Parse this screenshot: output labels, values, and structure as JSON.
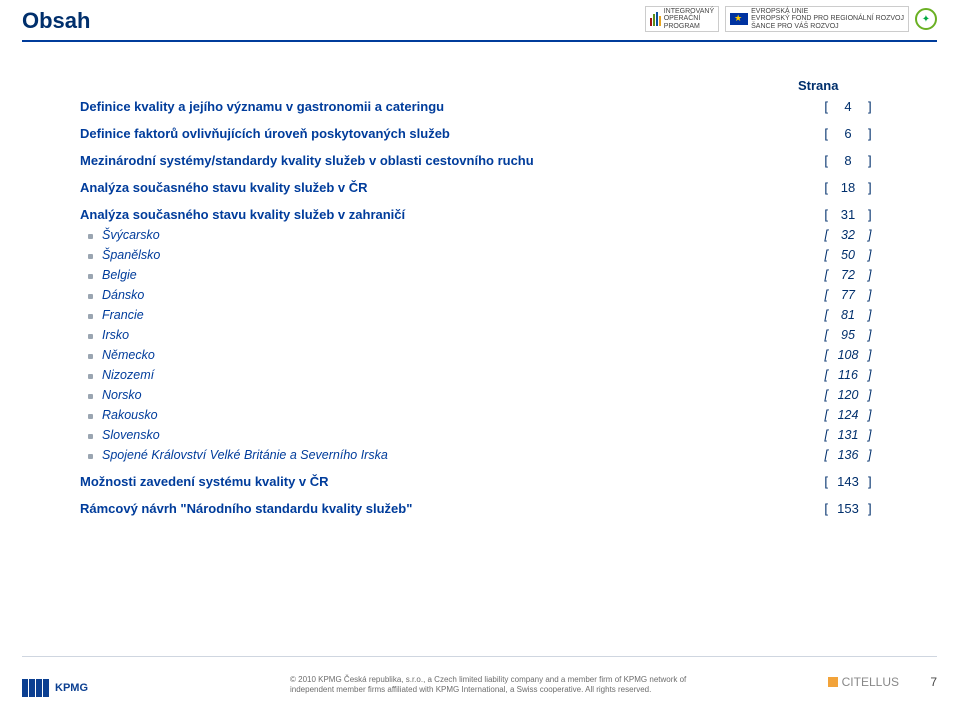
{
  "title": "Obsah",
  "strana_label": "Strana",
  "toc": [
    {
      "label": "Definice kvality a jejího významu v gastronomii a cateringu",
      "page": "4",
      "sub": false
    },
    {
      "label": "Definice faktorů ovlivňujících úroveň poskytovaných služeb",
      "page": "6",
      "sub": false
    },
    {
      "label": "Mezinárodní systémy/standardy kvality služeb v oblasti cestovního ruchu",
      "page": "8",
      "sub": false
    },
    {
      "label": "Analýza současného stavu kvality služeb v ČR",
      "page": "18",
      "sub": false
    },
    {
      "label": "Analýza současného stavu kvality služeb v zahraničí",
      "page": "31",
      "sub": false
    },
    {
      "label": "Švýcarsko",
      "page": "32",
      "sub": true
    },
    {
      "label": "Španělsko",
      "page": "50",
      "sub": true
    },
    {
      "label": "Belgie",
      "page": "72",
      "sub": true
    },
    {
      "label": "Dánsko",
      "page": "77",
      "sub": true
    },
    {
      "label": "Francie",
      "page": "81",
      "sub": true
    },
    {
      "label": "Irsko",
      "page": "95",
      "sub": true
    },
    {
      "label": "Německo",
      "page": "108",
      "sub": true
    },
    {
      "label": "Nizozemí",
      "page": "116",
      "sub": true
    },
    {
      "label": "Norsko",
      "page": "120",
      "sub": true
    },
    {
      "label": "Rakousko",
      "page": "124",
      "sub": true
    },
    {
      "label": "Slovensko",
      "page": "131",
      "sub": true
    },
    {
      "label": "Spojené Království Velké Británie a Severního Irska",
      "page": "136",
      "sub": true
    },
    {
      "label": "Možnosti zavedení systému kvality v ČR",
      "page": "143",
      "sub": false
    },
    {
      "label": "Rámcový návrh \"Národního standardu kvality služeb\"",
      "page": "153",
      "sub": false
    }
  ],
  "logos": {
    "iop1": "INTEGROVANÝ",
    "iop2": "OPERAČNÍ",
    "iop3": "PROGRAM",
    "eu1": "EVROPSKÁ UNIE",
    "eu2": "EVROPSKÝ FOND PRO REGIONÁLNÍ ROZVOJ",
    "eu3": "ŠANCE PRO VÁŠ ROZVOJ"
  },
  "footer": {
    "kpmg": "KPMG",
    "copyright": "© 2010 KPMG Česká republika, s.r.o., a Czech limited liability company and a member firm of KPMG network of independent member firms affiliated with KPMG International, a Swiss cooperative. All rights reserved.",
    "citellus": "CITELLUS",
    "page_number": "7"
  },
  "colors": {
    "accent": "#003c9b",
    "text": "#002f6c",
    "bars": [
      "#a01414",
      "#5e8f1a",
      "#0b4f9b",
      "#e7a51e"
    ]
  }
}
